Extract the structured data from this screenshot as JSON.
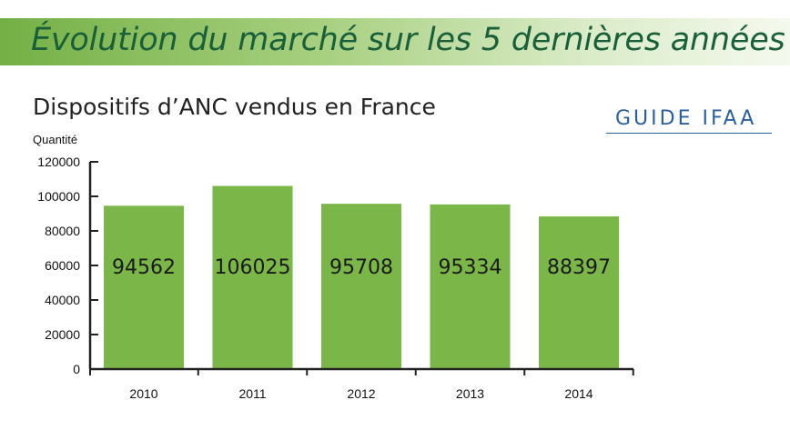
{
  "header": {
    "title": "Évolution du marché sur les 5 dernières années",
    "logo_text": "GUIDE IFAA"
  },
  "chart_data": {
    "type": "bar",
    "title": "Dispositifs d’ANC vendus en France",
    "ylabel": "Quantité",
    "xlabel": "",
    "categories": [
      "2010",
      "2011",
      "2012",
      "2013",
      "2014"
    ],
    "values": [
      94562,
      106025,
      95708,
      95334,
      88397
    ],
    "data_labels": [
      "94562",
      "106025",
      "95708",
      "95334",
      "88397"
    ],
    "ylim": [
      0,
      120000
    ],
    "yticks": [
      0,
      20000,
      40000,
      60000,
      80000,
      100000,
      120000
    ],
    "ytick_labels": [
      "0",
      "20000",
      "40000",
      "60000",
      "80000",
      "100000",
      "120000"
    ],
    "grid": false,
    "legend": "none",
    "colors": {
      "bar": "#7ab648",
      "axis": "#222222",
      "banner_title": "#19603a",
      "logo": "#2a5fa0"
    }
  }
}
